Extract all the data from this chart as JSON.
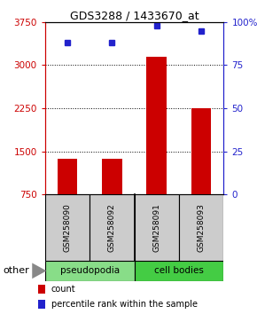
{
  "title": "GDS3288 / 1433670_at",
  "samples": [
    "GSM258090",
    "GSM258092",
    "GSM258091",
    "GSM258093"
  ],
  "bar_values": [
    1380,
    1380,
    3150,
    2250
  ],
  "percentile_values": [
    88,
    88,
    98,
    95
  ],
  "ylim_left": [
    750,
    3750
  ],
  "ylim_right": [
    0,
    100
  ],
  "yticks_left": [
    750,
    1500,
    2250,
    3000,
    3750
  ],
  "yticks_right": [
    0,
    25,
    50,
    75,
    100
  ],
  "grid_lines": [
    1500,
    2250,
    3000
  ],
  "bar_color": "#cc0000",
  "dot_color": "#2222cc",
  "groups": [
    {
      "label": "pseudopodia",
      "indices": [
        0,
        1
      ],
      "color": "#88dd88"
    },
    {
      "label": "cell bodies",
      "indices": [
        2,
        3
      ],
      "color": "#44cc44"
    }
  ],
  "other_label": "other",
  "legend_count_label": "count",
  "legend_pct_label": "percentile rank within the sample",
  "left_axis_color": "#cc0000",
  "right_axis_color": "#2222cc",
  "sample_box_color": "#cccccc",
  "bar_width": 0.45
}
